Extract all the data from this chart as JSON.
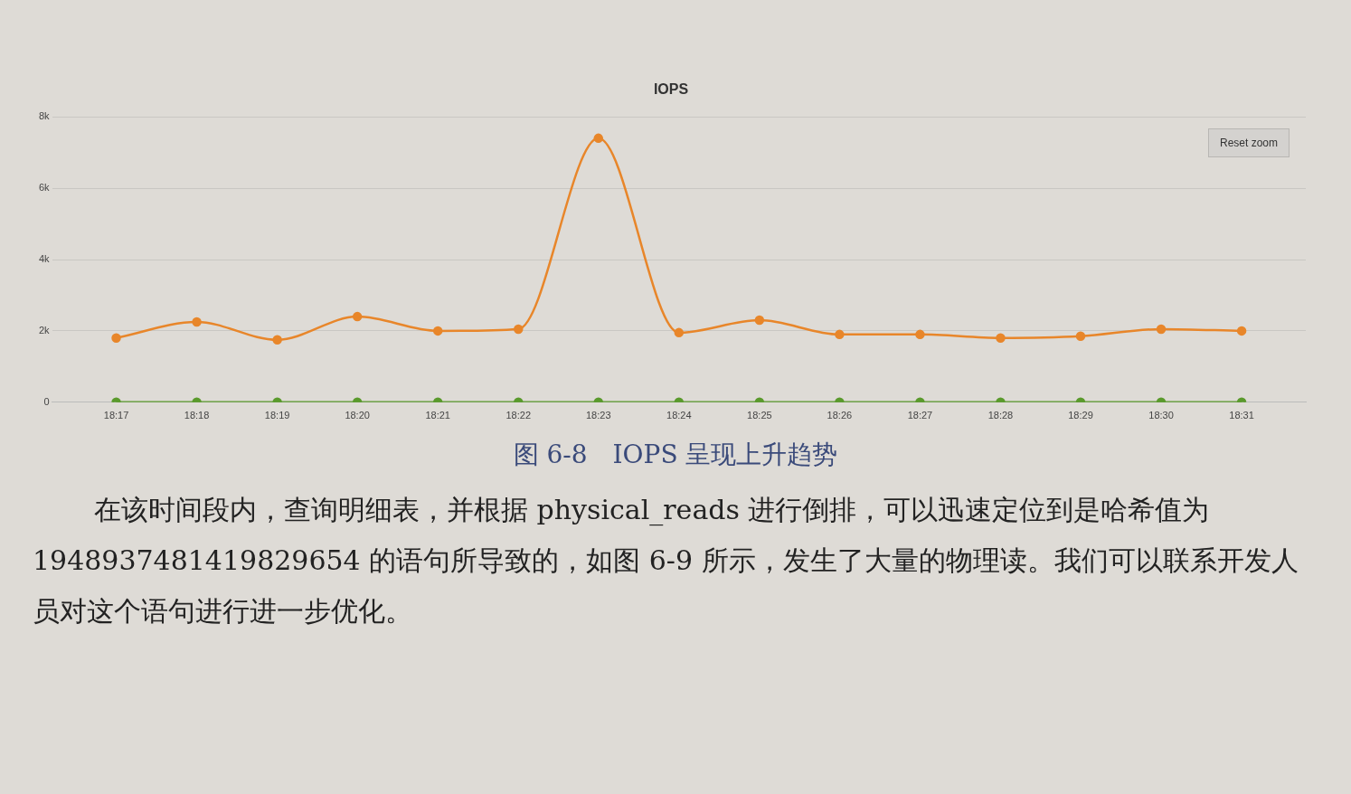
{
  "chart_data": {
    "type": "line",
    "title": "IOPS",
    "x": [
      18.2833,
      18.3,
      18.3167,
      18.3333,
      18.35,
      18.3667,
      18.3833,
      18.4,
      18.4167,
      18.4333,
      18.45,
      18.4667,
      18.4833,
      18.5,
      18.5167
    ],
    "series": [
      {
        "color": "#e8862a",
        "values": [
          1800,
          2250,
          1750,
          2400,
          2000,
          2050,
          7400,
          1950,
          2300,
          1900,
          1900,
          1800,
          1850,
          2050,
          2000
        ]
      },
      {
        "color": "#5a9a2c",
        "values": [
          0,
          0,
          0,
          0,
          0,
          0,
          0,
          0,
          0,
          0,
          0,
          0,
          0,
          0,
          0
        ]
      }
    ],
    "xlim": [
      18.27,
      18.53
    ],
    "xticks": [
      {
        "value": 18.2833,
        "label": "18:17"
      },
      {
        "value": 18.3,
        "label": "18:18"
      },
      {
        "value": 18.3167,
        "label": "18:19"
      },
      {
        "value": 18.3333,
        "label": "18:20"
      },
      {
        "value": 18.35,
        "label": "18:21"
      },
      {
        "value": 18.3667,
        "label": "18:22"
      },
      {
        "value": 18.3833,
        "label": "18:23"
      },
      {
        "value": 18.4,
        "label": "18:24"
      },
      {
        "value": 18.4167,
        "label": "18:25"
      },
      {
        "value": 18.4333,
        "label": "18:26"
      },
      {
        "value": 18.45,
        "label": "18:27"
      },
      {
        "value": 18.4667,
        "label": "18:28"
      },
      {
        "value": 18.4833,
        "label": "18:29"
      },
      {
        "value": 18.5,
        "label": "18:30"
      },
      {
        "value": 18.5167,
        "label": "18:31"
      }
    ],
    "ylim": [
      0,
      8000
    ],
    "yticks": [
      {
        "value": 0,
        "label": "0"
      },
      {
        "value": 2000,
        "label": "2k"
      },
      {
        "value": 4000,
        "label": "4k"
      },
      {
        "value": 6000,
        "label": "6k"
      },
      {
        "value": 8000,
        "label": "8k"
      }
    ],
    "grid": "y",
    "legend": false,
    "marker": "circle",
    "line_style": "solid",
    "annotations": [
      "Reset zoom",
      "图 6-8　IOPS 呈现上升趋势",
      "在该时间段内，查询明细表，并根据 physical_reads 进行倒排，可以迅速定位到是哈希值为 1948937481419829654 的语句所导致的，如图 6-9 所示，发生了大量的物理读。我们可以联系开发人员对这个语句进行进一步优化。"
    ]
  }
}
